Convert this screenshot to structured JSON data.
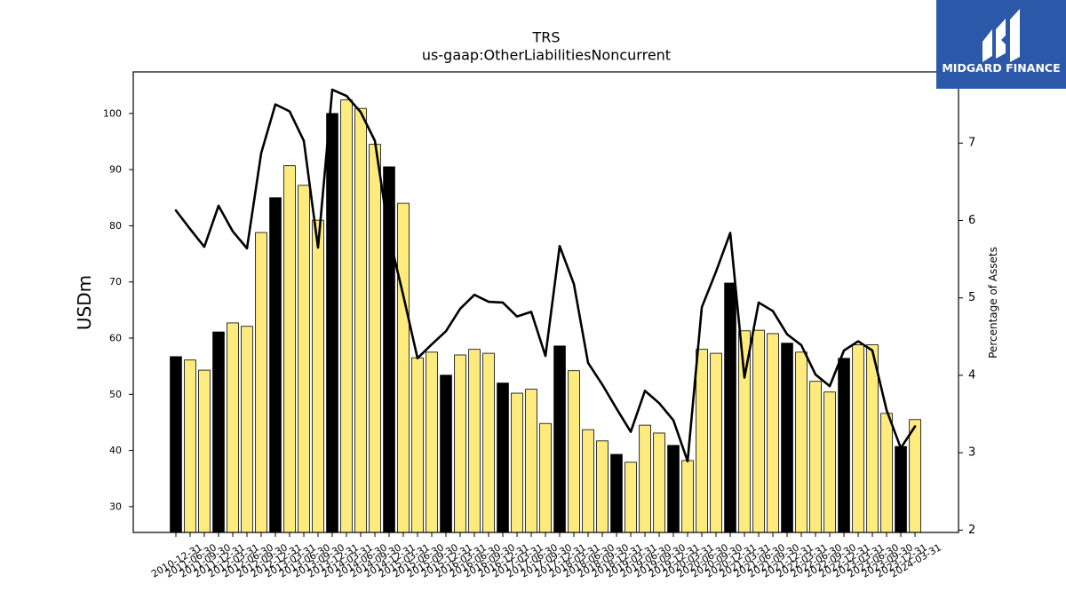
{
  "logo": {
    "text": "MIDGARD FINANCE",
    "icon": "midgard-logo-mark-icon"
  },
  "colors": {
    "bar": "#feeb7d",
    "bar_year_end": "#000000",
    "bar_edge": "#000000",
    "line": "#000000",
    "logo_background": "#2b58a8",
    "logo_foreground": "#ffffff"
  },
  "chart_data": {
    "type": "bar",
    "title": "TRS",
    "subtitle": "us-gaap:OtherLiabilitiesNoncurrent",
    "xlabel": "",
    "ylabel": "USDm",
    "y2label": "Percentage of Assets",
    "ylim": [
      25.4,
      107.4
    ],
    "y2lim": [
      1.97,
      7.92
    ],
    "yticks": [
      30,
      40,
      50,
      60,
      70,
      80,
      90,
      100
    ],
    "y2ticks": [
      2,
      3,
      4,
      5,
      6,
      7
    ],
    "grid": false,
    "categories": [
      "2010-12-31",
      "2011-06-30",
      "2011-09-30",
      "2011-12-31",
      "2012-03-31",
      "2012-06-30",
      "2012-09-30",
      "2012-12-31",
      "2013-03-31",
      "2013-06-30",
      "2013-09-30",
      "2013-12-31",
      "2014-03-31",
      "2014-06-30",
      "2014-09-30",
      "2014-12-31",
      "2015-03-31",
      "2015-06-30",
      "2015-09-30",
      "2015-12-31",
      "2016-03-31",
      "2016-06-30",
      "2016-09-30",
      "2016-12-31",
      "2017-03-31",
      "2017-06-30",
      "2017-09-30",
      "2017-12-31",
      "2018-03-31",
      "2018-06-30",
      "2018-09-30",
      "2018-12-31",
      "2019-03-31",
      "2019-06-30",
      "2019-09-30",
      "2019-12-31",
      "2020-03-31",
      "2020-06-30",
      "2020-09-30",
      "2020-12-31",
      "2021-03-31",
      "2021-06-30",
      "2021-09-30",
      "2021-12-31",
      "2022-03-31",
      "2022-06-30",
      "2022-09-30",
      "2022-12-31",
      "2023-03-31",
      "2023-06-30",
      "2023-09-30",
      "2023-12-31",
      "2024-03-31"
    ],
    "series": [
      {
        "type": "bar",
        "secondary_axis": false,
        "values": [
          56.7,
          56.1,
          54.3,
          61.1,
          62.7,
          62.1,
          78.8,
          85.0,
          90.7,
          87.2,
          81.0,
          100.0,
          102.4,
          100.9,
          94.5,
          90.5,
          84.0,
          56.5,
          57.5,
          53.4,
          57.0,
          58.0,
          57.3,
          52.0,
          50.2,
          50.9,
          44.8,
          58.6,
          54.2,
          43.7,
          41.7,
          39.3,
          37.9,
          44.5,
          43.1,
          40.9,
          38.2,
          58.0,
          57.3,
          69.8,
          61.3,
          61.4,
          60.8,
          59.1,
          57.5,
          52.3,
          50.4,
          56.4,
          58.8,
          58.8,
          46.6,
          40.7,
          45.5
        ]
      },
      {
        "type": "line",
        "secondary_axis": true,
        "values": [
          6.13,
          5.89,
          5.66,
          6.19,
          5.86,
          5.64,
          6.87,
          7.5,
          7.41,
          7.03,
          5.65,
          7.69,
          7.61,
          7.4,
          7.03,
          5.8,
          5.03,
          4.22,
          4.4,
          4.57,
          4.86,
          5.04,
          4.95,
          4.94,
          4.76,
          4.82,
          4.25,
          5.67,
          5.18,
          4.16,
          3.88,
          3.57,
          3.27,
          3.8,
          3.64,
          3.42,
          2.89,
          4.88,
          5.34,
          5.84,
          3.97,
          4.94,
          4.83,
          4.53,
          4.39,
          4.01,
          3.86,
          4.32,
          4.44,
          4.32,
          3.55,
          3.06,
          3.34
        ]
      }
    ]
  }
}
